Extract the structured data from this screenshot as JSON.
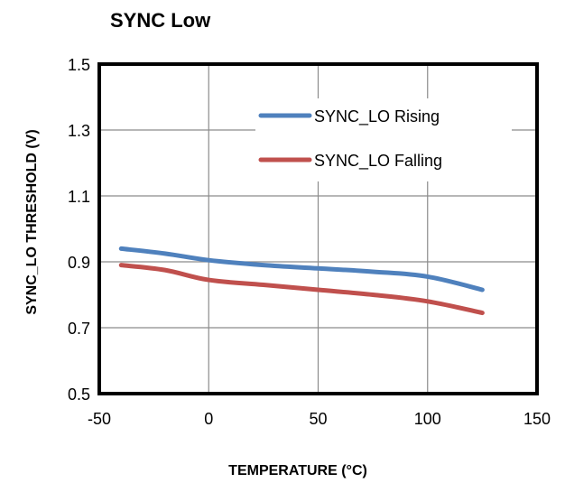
{
  "chart_data": {
    "type": "line",
    "title": "SYNC Low",
    "xlabel": "TEMPERATURE  (°C)",
    "ylabel": "SYNC_LO  THRESHOLD  (V)",
    "xlim": [
      -50,
      150
    ],
    "ylim": [
      0.5,
      1.5
    ],
    "xticks": [
      "-50",
      "0",
      "50",
      "100",
      "150"
    ],
    "yticks": [
      "0.5",
      "0.7",
      "0.9",
      "1.1",
      "1.3",
      "1.5"
    ],
    "grid": true,
    "legend_position": "top-right",
    "series": [
      {
        "name": "SYNC_LO Rising",
        "color": "#4F81BD",
        "x": [
          -40,
          -20,
          0,
          25,
          50,
          75,
          100,
          125
        ],
        "y": [
          0.94,
          0.925,
          0.905,
          0.89,
          0.88,
          0.87,
          0.855,
          0.815
        ]
      },
      {
        "name": "SYNC_LO Falling",
        "color": "#C0504D",
        "x": [
          -40,
          -20,
          0,
          25,
          50,
          75,
          100,
          125
        ],
        "y": [
          0.89,
          0.875,
          0.845,
          0.83,
          0.815,
          0.8,
          0.78,
          0.745
        ]
      }
    ]
  }
}
